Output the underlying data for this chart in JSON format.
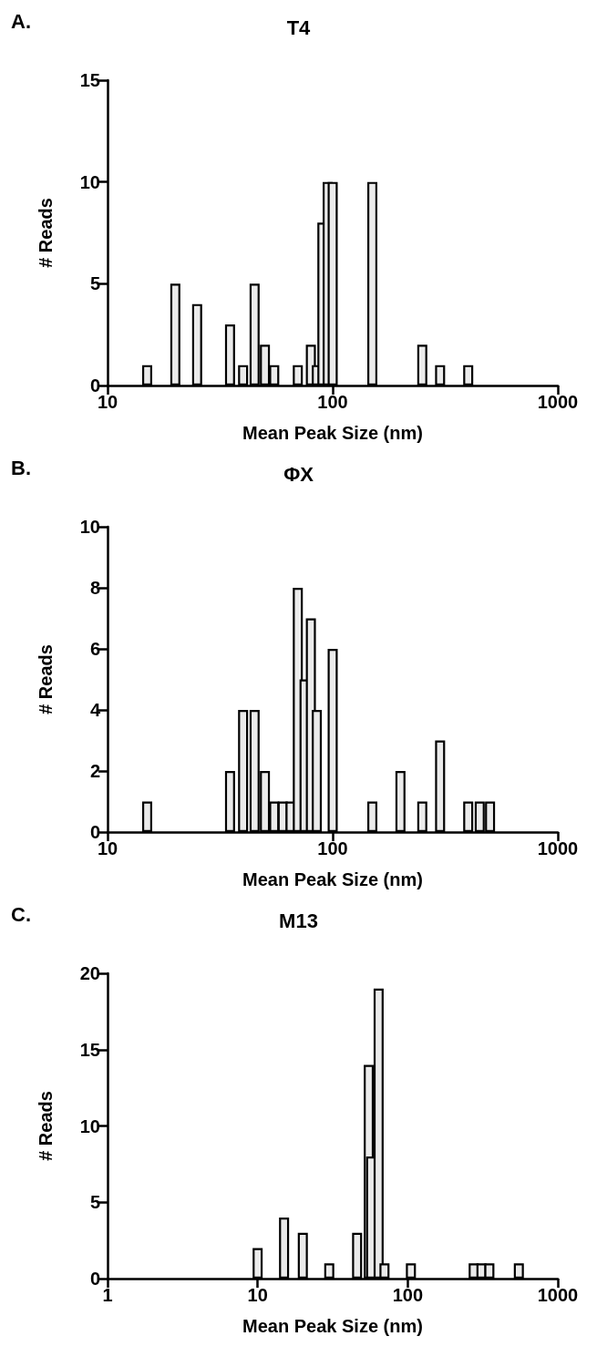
{
  "chart_data": [
    {
      "type": "bar",
      "title": "T4",
      "annotations": [
        "A."
      ],
      "xlabel": "Mean Peak Size (nm)",
      "ylabel": "# Reads",
      "log": "x",
      "xlim": [
        10,
        1000
      ],
      "xticks": [
        10,
        100,
        1000
      ],
      "ylim": [
        0,
        15
      ],
      "yticks": [
        0,
        5,
        10,
        15
      ],
      "grid": false,
      "color": "#ebebeb",
      "x": [
        15,
        20,
        25,
        35,
        40,
        45,
        50,
        55,
        70,
        80,
        85,
        90,
        95,
        100,
        150,
        250,
        300,
        400
      ],
      "values": [
        1,
        5,
        4,
        3,
        1,
        5,
        2,
        1,
        1,
        2,
        1,
        8,
        10,
        10,
        10,
        2,
        1,
        1
      ]
    },
    {
      "type": "bar",
      "title": "ΦX",
      "annotations": [
        "B."
      ],
      "xlabel": "Mean Peak Size (nm)",
      "ylabel": "# Reads",
      "log": "x",
      "xlim": [
        10,
        1000
      ],
      "xticks": [
        10,
        100,
        1000
      ],
      "ylim": [
        0,
        10
      ],
      "yticks": [
        0,
        2,
        4,
        6,
        8,
        10
      ],
      "grid": false,
      "color": "#ebebeb",
      "x": [
        15,
        35,
        40,
        45,
        50,
        55,
        60,
        65,
        70,
        75,
        80,
        85,
        100,
        150,
        200,
        250,
        300,
        400,
        450,
        500
      ],
      "values": [
        1,
        2,
        4,
        4,
        2,
        1,
        1,
        1,
        8,
        5,
        7,
        4,
        6,
        1,
        2,
        1,
        3,
        1,
        1,
        1
      ]
    },
    {
      "type": "bar",
      "title": "M13",
      "annotations": [
        "C."
      ],
      "xlabel": "Mean Peak Size (nm)",
      "ylabel": "# Reads",
      "log": "x",
      "xlim": [
        1,
        1000
      ],
      "xticks": [
        1,
        10,
        100,
        1000
      ],
      "ylim": [
        0,
        20
      ],
      "yticks": [
        0,
        5,
        10,
        15,
        20
      ],
      "grid": false,
      "color": "#ebebeb",
      "x": [
        10,
        15,
        20,
        30,
        46,
        55,
        57,
        64,
        70,
        105,
        275,
        310,
        350,
        550
      ],
      "values": [
        2,
        4,
        3,
        1,
        3,
        14,
        8,
        19,
        1,
        1,
        1,
        1,
        1,
        1
      ]
    }
  ]
}
